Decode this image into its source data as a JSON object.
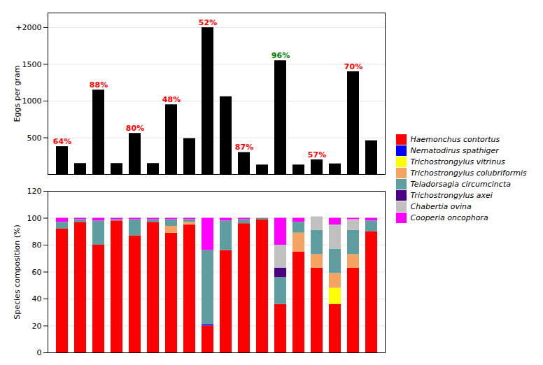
{
  "chart_data": [
    {
      "type": "bar",
      "categories": [
        null,
        null,
        null,
        null,
        null,
        null,
        null,
        null,
        null,
        null,
        null,
        null,
        null,
        null,
        null,
        null,
        null,
        null
      ],
      "values": [
        380,
        150,
        1150,
        150,
        560,
        150,
        950,
        490,
        2000,
        1060,
        300,
        130,
        1550,
        130,
        200,
        145,
        1400,
        460
      ],
      "color": "black",
      "annotations": [
        "64%",
        null,
        "88%",
        null,
        "80%",
        null,
        "48%",
        null,
        "52%",
        null,
        "87%",
        null,
        "96%",
        null,
        "57%",
        null,
        "70%",
        null
      ],
      "annotation_colors": [
        "red",
        null,
        "red",
        null,
        "red",
        null,
        "red",
        null,
        "red",
        null,
        "red",
        null,
        "green",
        null,
        "red",
        null,
        "red",
        null
      ],
      "ylabel": "Eggs per gram",
      "ylim": [
        0,
        2200
      ],
      "yticks": [
        500,
        1000,
        1500,
        {
          "value": 2000,
          "label": "+2000"
        }
      ],
      "grid": true,
      "tick_labels": "y"
    },
    {
      "type": "bar",
      "stacked": true,
      "categories": [
        null,
        null,
        null,
        null,
        null,
        null,
        null,
        null,
        null,
        null,
        null,
        null,
        null,
        null,
        null,
        null,
        null,
        null
      ],
      "series": [
        {
          "name": "Haemonchus contortus",
          "color": "#FF0000",
          "values": [
            92,
            97,
            80,
            98,
            87,
            97,
            89,
            95,
            20,
            76,
            96,
            99,
            36,
            75,
            63,
            36,
            63,
            90
          ]
        },
        {
          "name": "Nematodirus spathiger",
          "color": "#0000FF",
          "values": [
            0,
            0,
            0,
            0,
            0,
            0,
            0,
            0,
            1,
            0,
            0,
            0,
            0,
            0,
            0,
            0,
            0,
            0
          ]
        },
        {
          "name": "Trichostrongylus vitrinus",
          "color": "#FFFF00",
          "values": [
            0,
            0,
            0,
            0,
            0,
            0,
            0,
            0,
            0,
            0,
            0,
            0,
            0,
            0,
            0,
            12,
            0,
            0
          ]
        },
        {
          "name": "Trichostrongylus colubriformis",
          "color": "#F4A460",
          "values": [
            0,
            0,
            0,
            0,
            0,
            0,
            5,
            2,
            0,
            0,
            0,
            0,
            0,
            14,
            10,
            11,
            10,
            0
          ]
        },
        {
          "name": "Teladorsagia circumcincta",
          "color": "#5F9EA0",
          "values": [
            5,
            2,
            18,
            1,
            12,
            2,
            5,
            2,
            55,
            22,
            3,
            1,
            20,
            8,
            18,
            18,
            18,
            8
          ]
        },
        {
          "name": "Trichostrongylus axei",
          "color": "#4B0082",
          "values": [
            0,
            0,
            0,
            0,
            0,
            0,
            0,
            0,
            0,
            0,
            0,
            0,
            7,
            0,
            0,
            0,
            0,
            0
          ]
        },
        {
          "name": "Chabertia ovina",
          "color": "#C0C0C0",
          "values": [
            0,
            0,
            0,
            0,
            0,
            0,
            0,
            0,
            0,
            0,
            0,
            0,
            17,
            0,
            10,
            18,
            8,
            0
          ]
        },
        {
          "name": "Cooperia oncophora",
          "color": "#FF00FF",
          "values": [
            3,
            1,
            2,
            1,
            1,
            1,
            1,
            1,
            24,
            2,
            1,
            0,
            20,
            3,
            0,
            5,
            1,
            2
          ]
        }
      ],
      "ylabel": "Species composition (%)",
      "ylim": [
        0,
        120
      ],
      "yticks": [
        0,
        20,
        40,
        60,
        80,
        100,
        120
      ],
      "grid": true,
      "legend": "right",
      "tick_labels": "y"
    }
  ]
}
